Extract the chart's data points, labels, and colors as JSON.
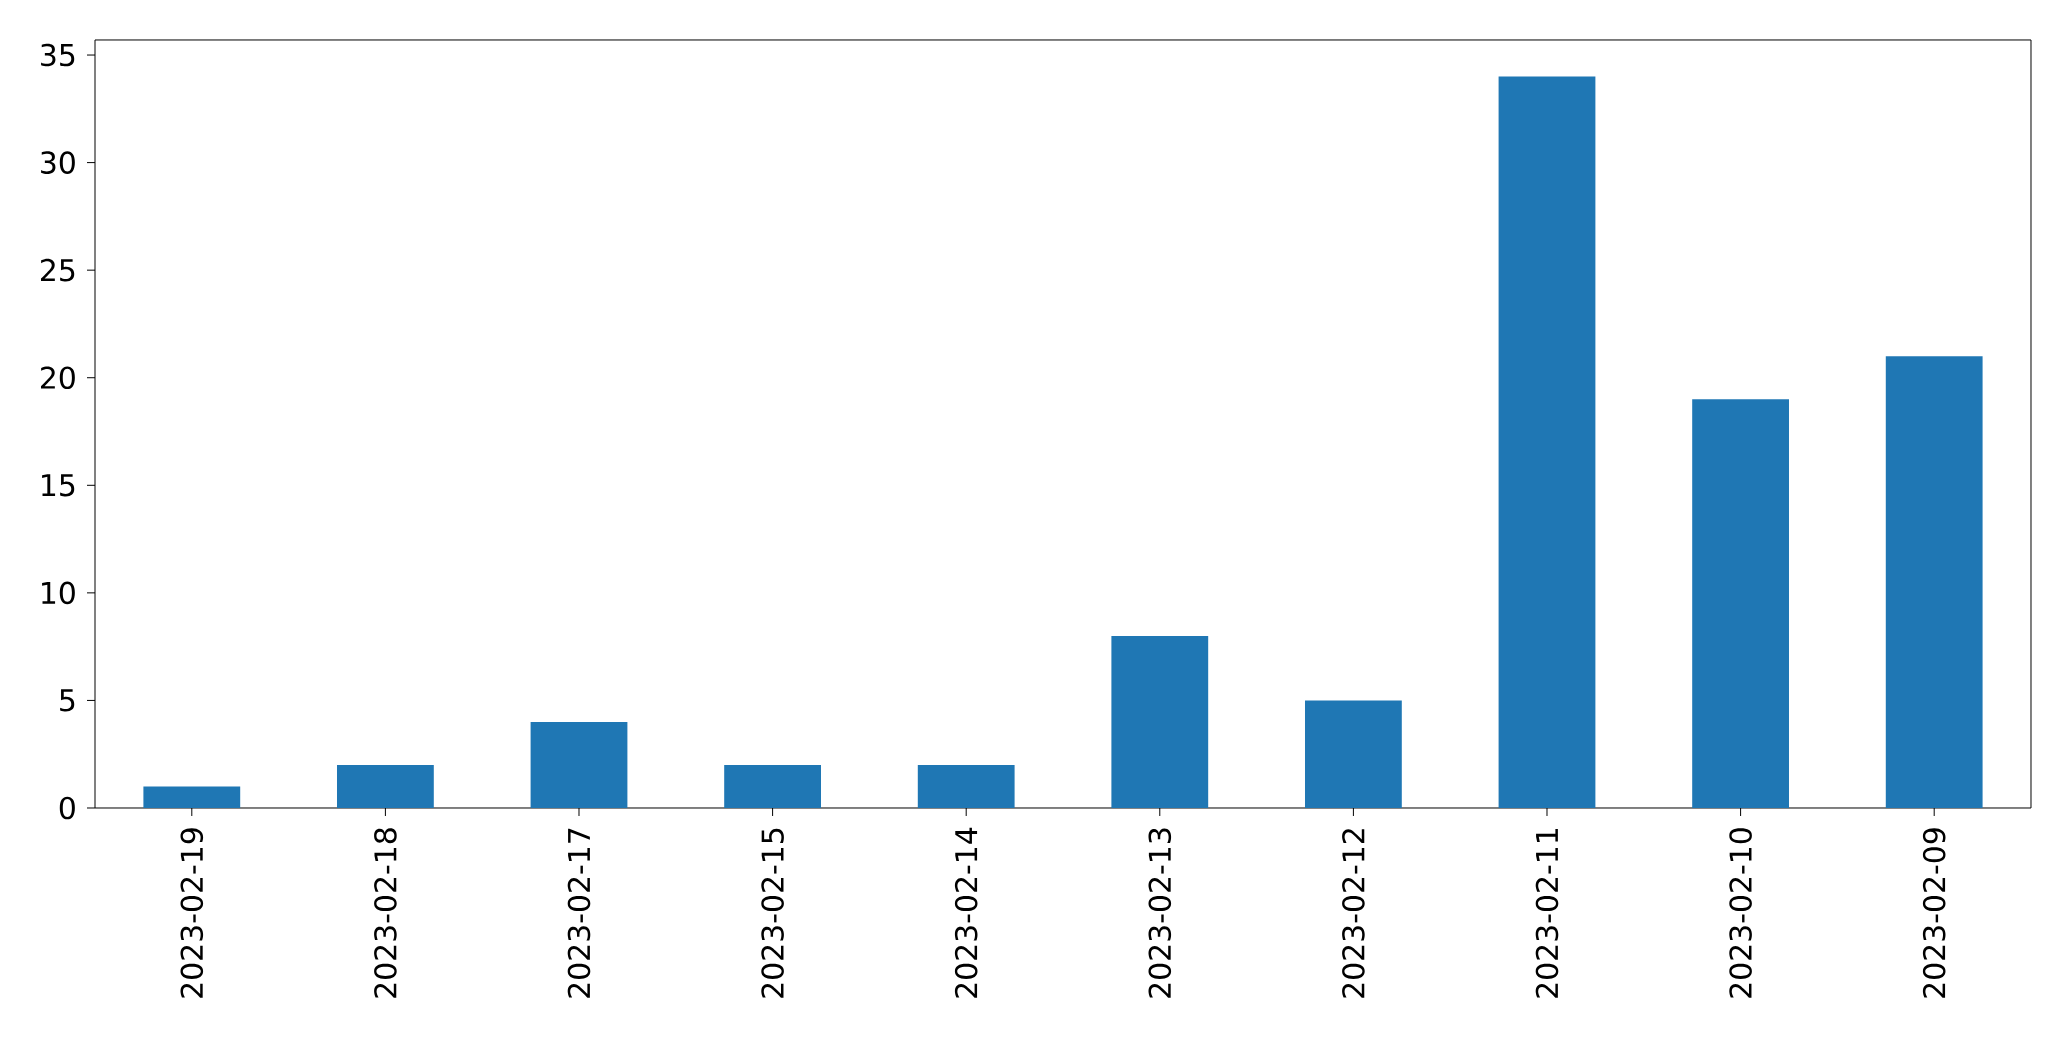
{
  "chart_data": {
    "type": "bar",
    "categories": [
      "2023-02-19",
      "2023-02-18",
      "2023-02-17",
      "2023-02-15",
      "2023-02-14",
      "2023-02-13",
      "2023-02-12",
      "2023-02-11",
      "2023-02-10",
      "2023-02-09"
    ],
    "values": [
      1,
      2,
      4,
      2,
      2,
      8,
      5,
      34,
      19,
      21
    ],
    "color": "#1f77b4",
    "ylim": [
      0,
      35.7
    ],
    "yticks": [
      0,
      5,
      10,
      15,
      20,
      25,
      30,
      35
    ],
    "grid": false
  }
}
